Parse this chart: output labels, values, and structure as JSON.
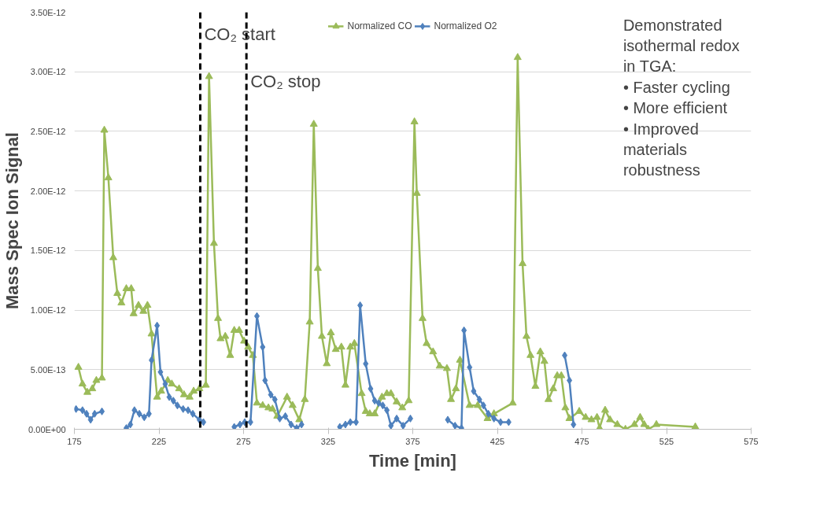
{
  "chart_data": {
    "type": "line",
    "xlabel": "Time [min]",
    "ylabel": "Mass Spec Ion Signal",
    "xlim": [
      175,
      575
    ],
    "xticks": [
      175,
      225,
      275,
      325,
      375,
      425,
      475,
      525,
      575
    ],
    "ylim": [
      0,
      3.5e-12
    ],
    "yticks": [
      {
        "value": 0,
        "label": "0.00E+00"
      },
      {
        "value": 5e-13,
        "label": "5.00E-13"
      },
      {
        "value": 1e-12,
        "label": "1.00E-12"
      },
      {
        "value": 1.5e-12,
        "label": "1.50E-12"
      },
      {
        "value": 2e-12,
        "label": "2.00E-12"
      },
      {
        "value": 2.5e-12,
        "label": "2.50E-12"
      },
      {
        "value": 3e-12,
        "label": "3.00E-12"
      },
      {
        "value": 3.5e-12,
        "label": "3.50E-12"
      }
    ],
    "grid": "y",
    "legend": "top",
    "series": [
      {
        "name": "Normalized CO",
        "color": "#9bbb59",
        "marker": "triangle",
        "x": [
          177.4,
          179.8,
          182.7,
          185.6,
          188.0,
          191.3,
          192.7,
          195.1,
          198.0,
          200.4,
          202.8,
          205.7,
          208.6,
          210.0,
          212.9,
          215.8,
          218.2,
          220.6,
          223.9,
          226.3,
          230.2,
          232.6,
          236.9,
          239.8,
          243.1,
          245.5,
          248.9,
          252.7,
          254.6,
          257.5,
          259.9,
          261.4,
          264.2,
          267.1,
          269.5,
          272.4,
          275.3,
          277.7,
          280.5,
          282.9,
          286.3,
          289.7,
          292.1,
          294.9,
          300.7,
          304.0,
          307.9,
          311.2,
          314.1,
          316.5,
          318.9,
          321.3,
          324.2,
          326.6,
          329.5,
          332.8,
          335.2,
          338.1,
          340.5,
          344.8,
          347.2,
          349.6,
          352.5,
          356.8,
          359.7,
          362.1,
          365.5,
          368.8,
          372.6,
          376.0,
          377.4,
          380.8,
          383.2,
          387.0,
          390.9,
          395.2,
          397.6,
          400.5,
          402.9,
          408.6,
          413.4,
          419.2,
          423.0,
          434.1,
          437.0,
          439.9,
          442.2,
          444.6,
          447.5,
          450.4,
          452.8,
          455.2,
          458.0,
          460.4,
          462.8,
          465.2,
          467.6,
          473.4,
          477.2,
          480.6,
          483.9,
          485.4,
          488.7,
          491.6,
          495.9,
          500.7,
          506.0,
          509.4,
          511.8,
          514.2,
          519.0,
          542.0
        ],
        "values": [
          5.2e-13,
          3.8e-13,
          3.1e-13,
          3.4e-13,
          4.1e-13,
          4.3e-13,
          2.51e-12,
          2.11e-12,
          1.44e-12,
          1.14e-12,
          1.06e-12,
          1.18e-12,
          1.18e-12,
          9.7e-13,
          1.04e-12,
          9.9e-13,
          1.04e-12,
          8e-13,
          2.7e-13,
          3.2e-13,
          4.1e-13,
          3.8e-13,
          3.4e-13,
          2.9e-13,
          2.7e-13,
          3.2e-13,
          3.4e-13,
          3.7e-13,
          2.96e-12,
          1.56e-12,
          9.3e-13,
          7.6e-13,
          7.8e-13,
          6.2e-13,
          8.3e-13,
          8.3e-13,
          7.4e-13,
          6.9e-13,
          6.2e-13,
          2.2e-13,
          2e-13,
          1.8e-13,
          1.7e-13,
          1.1e-13,
          2.7e-13,
          2e-13,
          8e-14,
          2.5e-13,
          9e-13,
          2.56e-12,
          1.35e-12,
          7.8e-13,
          5.5e-13,
          8.1e-13,
          6.7e-13,
          6.9e-13,
          3.7e-13,
          6.9e-13,
          7.2e-13,
          3e-13,
          1.5e-13,
          1.3e-13,
          1.3e-13,
          2.7e-13,
          3e-13,
          3e-13,
          2.3e-13,
          1.8e-13,
          2.4e-13,
          2.58e-12,
          1.98e-12,
          9.3e-13,
          7.2e-13,
          6.5e-13,
          5.3e-13,
          5.1e-13,
          2.5e-13,
          3.4e-13,
          5.8e-13,
          2e-13,
          2e-13,
          9e-14,
          1.3e-13,
          2.2e-13,
          3.12e-12,
          1.39e-12,
          7.8e-13,
          6.2e-13,
          3.6e-13,
          6.5e-13,
          5.7e-13,
          2.5e-13,
          3.4e-13,
          4.5e-13,
          4.5e-13,
          1.8e-13,
          9e-14,
          1.5e-13,
          1e-13,
          8e-14,
          1e-13,
          1e-14,
          1.6e-13,
          8e-14,
          4e-14,
          0,
          4e-14,
          1e-13,
          4e-14,
          0,
          4e-14,
          2e-14
        ]
      },
      {
        "name": "Normalized O2",
        "color": "#4f81bd",
        "marker": "diamond",
        "x": [
          176.0,
          179.8,
          182.2,
          184.6,
          187.0,
          191.3,
          198.0,
          205.7,
          208.1,
          210.5,
          213.4,
          216.3,
          219.1,
          220.6,
          223.9,
          225.9,
          228.7,
          231.1,
          233.5,
          235.9,
          239.3,
          242.2,
          245.0,
          248.9,
          251.3,
          260.0,
          269.5,
          272.9,
          275.7,
          279.1,
          282.9,
          286.3,
          287.7,
          291.1,
          293.5,
          296.4,
          299.7,
          303.1,
          306.4,
          309.3,
          320.0,
          331.9,
          335.2,
          338.1,
          341.5,
          343.9,
          347.2,
          350.1,
          352.5,
          354.9,
          357.3,
          359.7,
          362.1,
          365.5,
          369.3,
          373.6,
          385.0,
          395.7,
          400.0,
          403.8,
          405.3,
          408.6,
          411.0,
          414.4,
          416.8,
          419.7,
          423.0,
          426.9,
          431.7,
          450.0,
          464.8,
          467.6,
          470.0
        ],
        "values": [
          1.7e-13,
          1.6e-13,
          1.3e-13,
          8e-14,
          1.3e-13,
          1.5e-13,
          null,
          1e-14,
          4e-14,
          1.6e-13,
          1.3e-13,
          1e-13,
          1.3e-13,
          5.8e-13,
          8.7e-13,
          4.8e-13,
          3.8e-13,
          2.7e-13,
          2.4e-13,
          2e-13,
          1.7e-13,
          1.6e-13,
          1.3e-13,
          8e-14,
          6e-14,
          null,
          2e-14,
          4e-14,
          6e-14,
          6e-14,
          9.5e-13,
          6.9e-13,
          4.1e-13,
          2.9e-13,
          2.5e-13,
          9e-14,
          1.1e-13,
          4e-14,
          1e-14,
          4e-14,
          null,
          2e-14,
          4e-14,
          6e-14,
          6e-14,
          1.04e-12,
          5.5e-13,
          3.4e-13,
          2.4e-13,
          2.2e-13,
          2e-13,
          1.6e-13,
          3e-14,
          9e-14,
          3e-14,
          9e-14,
          null,
          8e-14,
          3e-14,
          1e-14,
          8.3e-13,
          5.2e-13,
          3.2e-13,
          2.5e-13,
          2e-13,
          1.3e-13,
          9e-14,
          6e-14,
          6e-14,
          null,
          6.2e-13,
          4.1e-13,
          4e-14
        ]
      }
    ],
    "ref_lines": [
      {
        "axis": "x",
        "value": 249.4,
        "label": "CO₂ start",
        "color": "#000000",
        "line_style": "dashed"
      },
      {
        "axis": "x",
        "value": 276.7,
        "label": "CO₂ stop",
        "color": "#000000",
        "line_style": "dashed"
      }
    ],
    "annotations": [
      "Demonstrated\nisothermal redox\nin TGA:\n•    Faster cycling\n•    More efficient\n•    Improved\n      materials\n      robustness"
    ]
  }
}
